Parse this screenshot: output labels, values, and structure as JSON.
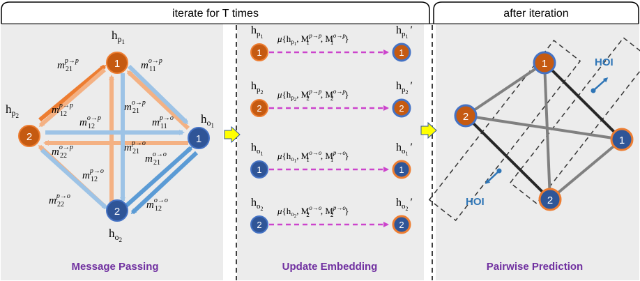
{
  "header": {
    "left_title": "iterate for T times",
    "right_title": "after iteration"
  },
  "panels": {
    "message_passing": {
      "caption": "Message Passing",
      "nodes": {
        "p1": {
          "num": "1",
          "base": "h",
          "sub": "p",
          "subsub": "1"
        },
        "p2": {
          "num": "2",
          "base": "h",
          "sub": "p",
          "subsub": "2"
        },
        "o1": {
          "num": "1",
          "base": "h",
          "sub": "o",
          "subsub": "1"
        },
        "o2": {
          "num": "2",
          "base": "h",
          "sub": "o",
          "subsub": "2"
        }
      },
      "messages": [
        {
          "id": "m21pp",
          "base": "m",
          "sub": "21",
          "sup": "p→p"
        },
        {
          "id": "m11op",
          "base": "m",
          "sub": "11",
          "sup": "o→p"
        },
        {
          "id": "m21op",
          "base": "m",
          "sub": "21",
          "sup": "o→p"
        },
        {
          "id": "m12pp",
          "base": "m",
          "sub": "12",
          "sup": "p→p"
        },
        {
          "id": "m12op",
          "base": "m",
          "sub": "12",
          "sup": "o→p"
        },
        {
          "id": "m11po",
          "base": "m",
          "sub": "11",
          "sup": "p→o"
        },
        {
          "id": "m21po",
          "base": "m",
          "sub": "21",
          "sup": "p→o"
        },
        {
          "id": "m22op",
          "base": "m",
          "sub": "22",
          "sup": "o→p"
        },
        {
          "id": "m21oo",
          "base": "m",
          "sub": "21",
          "sup": "o→o"
        },
        {
          "id": "m12po",
          "base": "m",
          "sub": "12",
          "sup": "p→o"
        },
        {
          "id": "m22po",
          "base": "m",
          "sub": "22",
          "sup": "p→o"
        },
        {
          "id": "m12oo",
          "base": "m",
          "sub": "12",
          "sup": "o→o"
        }
      ]
    },
    "update_embedding": {
      "caption": "Update Embedding",
      "rows": [
        {
          "num": "1",
          "kind": "p",
          "h_sub": "p",
          "h_subsub": "1",
          "mu": "μ",
          "M_idx": "1",
          "sup_a": "p→p",
          "sup_b": "o→p"
        },
        {
          "num": "2",
          "kind": "p",
          "h_sub": "p",
          "h_subsub": "2",
          "mu": "μ",
          "M_idx": "2",
          "sup_a": "p→p",
          "sup_b": "o→p"
        },
        {
          "num": "1",
          "kind": "o",
          "h_sub": "o",
          "h_subsub": "1",
          "mu": "μ",
          "M_idx": "1",
          "sup_a": "o→o",
          "sup_b": "p→o"
        },
        {
          "num": "2",
          "kind": "o",
          "h_sub": "o",
          "h_subsub": "2",
          "mu": "μ",
          "M_idx": "2",
          "sup_a": "o→o",
          "sup_b": "p→o"
        }
      ],
      "prime": "′"
    },
    "pairwise_prediction": {
      "caption": "Pairwise Prediction",
      "hoi_top": "HOI",
      "hoi_bottom": "HOI",
      "nodes": {
        "p1": "1",
        "p2": "2",
        "o1": "1",
        "o2": "2"
      }
    }
  },
  "colors": {
    "human_node": "#c55a11",
    "object_node": "#2f5597",
    "human_arrow": "#f4b183",
    "human_arrow_dark": "#ed7d31",
    "object_arrow": "#9dc3e6",
    "object_arrow_dark": "#5b9bd5",
    "caption": "#7030a0",
    "dash_arrow": "#cc44cc",
    "panel_bg": "#ececec",
    "hoi_text": "#2e75b6",
    "link_gray": "#808080",
    "link_dark": "#262626",
    "node_orange_ring": "#ed7d31",
    "node_blue_ring": "#4472c4"
  }
}
